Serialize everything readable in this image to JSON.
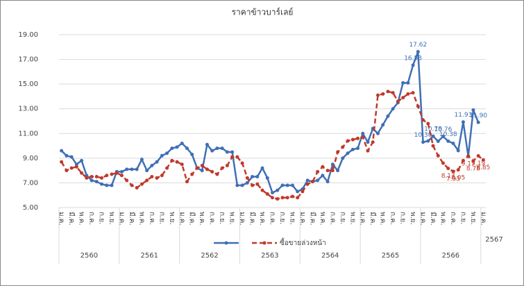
{
  "chart_data": {
    "type": "line",
    "title": "ราคาข้าวบาร์เลย์",
    "categories": [
      "ม.ค.",
      null,
      "มี.ค.",
      null,
      "พ.ค.",
      null,
      "ก.ค.",
      null,
      "ก.ย.",
      null,
      "พ.ย.",
      null,
      "ม.ค.",
      null,
      "มี.ค.",
      null,
      "พ.ค.",
      null,
      "ก.ค.",
      null,
      "ก.ย.",
      null,
      "พ.ย.",
      null,
      "ม.ค.",
      null,
      "มี.ค.",
      null,
      "พ.ค.",
      null,
      "ก.ค.",
      null,
      "ก.ย.",
      null,
      "พ.ย.",
      null,
      "ม.ค.",
      null,
      "มี.ค.",
      null,
      "พ.ค.",
      null,
      "ก.ค.",
      null,
      "ก.ย.",
      null,
      "พ.ย.",
      null,
      "ม.ค.",
      null,
      "มี.ค.",
      null,
      "พ.ค.",
      null,
      "ก.ค.",
      null,
      "ก.ย.",
      null,
      "พ.ย.",
      null,
      "ม.ค.",
      null,
      "มี.ค.",
      null,
      "พ.ค.",
      null,
      "ก.ค.",
      null,
      "ก.ย.",
      null,
      "พ.ย.",
      null,
      "ม.ค.",
      null,
      "มี.ค.",
      null,
      "พ.ค.",
      null,
      "ก.ค.",
      null,
      "ก.ย.",
      null,
      "พ.ย.",
      null,
      "ม.ค."
    ],
    "years": [
      "2560",
      "2561",
      "2562",
      "2563",
      "2564",
      "2565",
      "2566",
      "2567"
    ],
    "series": [
      {
        "color": "#3f6fb5",
        "marker": true,
        "values": [
          9.6,
          9.2,
          9.1,
          8.5,
          8.8,
          7.6,
          7.2,
          7.1,
          6.9,
          6.8,
          6.8,
          7.9,
          7.9,
          8.1,
          8.1,
          8.1,
          8.9,
          8.0,
          8.4,
          8.7,
          9.2,
          9.4,
          9.8,
          9.9,
          10.2,
          9.8,
          9.3,
          8.2,
          8.0,
          10.1,
          9.6,
          9.8,
          9.8,
          9.5,
          9.5,
          6.8,
          6.8,
          7.0,
          7.5,
          7.5,
          8.2,
          7.4,
          6.2,
          6.4,
          6.8,
          6.8,
          6.8,
          6.3,
          6.5,
          7.2,
          7.1,
          7.2,
          7.6,
          7.1,
          8.5,
          8.0,
          9.0,
          9.4,
          9.7,
          9.8,
          11.0,
          10.3,
          11.4,
          11.0,
          11.7,
          12.4,
          13.0,
          13.5,
          15.1,
          15.1,
          16.53,
          17.62,
          10.3,
          10.39,
          10.78,
          10.37,
          10.76,
          10.38,
          10.2,
          9.62,
          11.93,
          9.16,
          12.9,
          11.9,
          null
        ],
        "value_labels": [
          null,
          null,
          null,
          null,
          null,
          null,
          null,
          null,
          null,
          null,
          null,
          null,
          null,
          null,
          null,
          null,
          null,
          null,
          null,
          null,
          null,
          null,
          null,
          null,
          null,
          null,
          null,
          null,
          null,
          null,
          null,
          null,
          null,
          null,
          null,
          null,
          null,
          null,
          null,
          null,
          null,
          null,
          null,
          null,
          null,
          null,
          null,
          null,
          null,
          null,
          null,
          null,
          null,
          null,
          null,
          null,
          null,
          null,
          null,
          null,
          null,
          null,
          null,
          null,
          null,
          null,
          null,
          null,
          null,
          null,
          "16.53",
          "17.62",
          "10.30",
          null,
          "10.78",
          null,
          "10.76",
          "10.38",
          null,
          null,
          "11.93",
          null,
          null,
          "11.90",
          null
        ]
      },
      {
        "name": "ซื้อขายล่วงหน้า",
        "color": "#c0392b",
        "dashed": true,
        "values": [
          8.7,
          8.0,
          8.2,
          8.3,
          7.8,
          7.4,
          7.5,
          7.5,
          7.4,
          7.6,
          7.7,
          7.8,
          7.6,
          7.2,
          6.8,
          6.6,
          6.9,
          7.2,
          7.5,
          7.4,
          7.6,
          8.2,
          8.8,
          8.7,
          8.5,
          7.1,
          7.7,
          8.2,
          8.4,
          8.1,
          7.9,
          7.7,
          8.2,
          8.4,
          9.1,
          9.1,
          8.6,
          7.4,
          6.8,
          6.9,
          6.4,
          6.1,
          5.8,
          5.7,
          5.8,
          5.8,
          5.9,
          5.8,
          6.3,
          6.9,
          7.1,
          7.9,
          8.3,
          8.0,
          8.0,
          9.5,
          9.9,
          10.4,
          10.5,
          10.6,
          10.7,
          9.6,
          10.3,
          14.1,
          14.2,
          14.4,
          14.3,
          13.6,
          13.9,
          14.2,
          14.3,
          13.2,
          12.1,
          11.8,
          10.0,
          9.2,
          8.6,
          8.17,
          7.93,
          8.05,
          8.8,
          9.17,
          8.78,
          9.19,
          8.85
        ],
        "value_labels": [
          null,
          null,
          null,
          null,
          null,
          null,
          null,
          null,
          null,
          null,
          null,
          null,
          null,
          null,
          null,
          null,
          null,
          null,
          null,
          null,
          null,
          null,
          null,
          null,
          null,
          null,
          null,
          null,
          null,
          null,
          null,
          null,
          null,
          null,
          null,
          null,
          null,
          null,
          null,
          null,
          null,
          null,
          null,
          null,
          null,
          null,
          null,
          null,
          null,
          null,
          null,
          null,
          null,
          null,
          null,
          null,
          null,
          null,
          null,
          null,
          null,
          null,
          null,
          null,
          null,
          null,
          null,
          null,
          null,
          null,
          null,
          null,
          null,
          null,
          null,
          null,
          null,
          "8.17",
          "7.93",
          "8.05",
          null,
          "9.17",
          "8.78",
          "9.19",
          "8.85"
        ]
      }
    ],
    "ylim": [
      5,
      19
    ],
    "yticks": [
      {
        "value": 5,
        "label": "5.00"
      },
      {
        "value": 7,
        "label": "7.00"
      },
      {
        "value": 9,
        "label": "9.00"
      },
      {
        "value": 11,
        "label": "11.00"
      },
      {
        "value": 13,
        "label": "13.00"
      },
      {
        "value": 15,
        "label": "15.00"
      },
      {
        "value": 17,
        "label": "17.00"
      },
      {
        "value": 19,
        "label": "19.00"
      }
    ],
    "grid": true
  }
}
